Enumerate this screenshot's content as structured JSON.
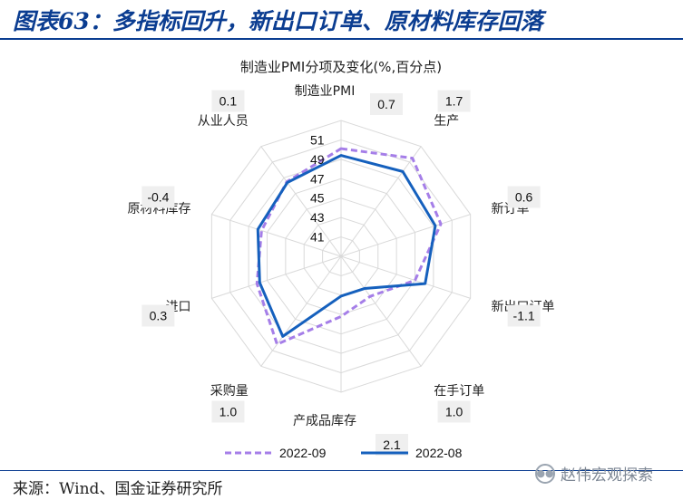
{
  "header": {
    "title": "图表63：多指标回升，新出口订单、原材料库存回落",
    "accent_color": "#0b3d91"
  },
  "footer": {
    "source": "来源：Wind、国金证券研究所"
  },
  "watermark": {
    "text": "赵伟宏观探索",
    "icon": "wechat-icon"
  },
  "chart_data": {
    "type": "radar",
    "title": "制造业PMI分项及变化(%,百分点)",
    "axes": [
      "制造业PMI",
      "生产",
      "新订单",
      "新出口订单",
      "在手订单",
      "产成品库存",
      "采购量",
      "进口",
      "原材料库存",
      "从业人员"
    ],
    "changes": [
      "0.7",
      "1.7",
      "0.6",
      "-1.1",
      "1.0",
      "2.1",
      "1.0",
      "0.3",
      "-0.4",
      "0.1"
    ],
    "rlim": [
      39,
      53
    ],
    "ticks": [
      41,
      43,
      45,
      47,
      49,
      51
    ],
    "grid": true,
    "series": [
      {
        "name": "2022-09",
        "color": "#a57ee8",
        "dashed": true,
        "values": [
          50.1,
          51.5,
          49.8,
          47.0,
          44.1,
          45.2,
          50.2,
          48.1,
          47.6,
          48.5
        ]
      },
      {
        "name": "2022-08",
        "color": "#1560bd",
        "dashed": false,
        "values": [
          49.4,
          49.8,
          49.2,
          48.1,
          43.1,
          43.1,
          49.2,
          47.8,
          48.0,
          48.4
        ]
      }
    ],
    "legend_position": "bottom"
  }
}
